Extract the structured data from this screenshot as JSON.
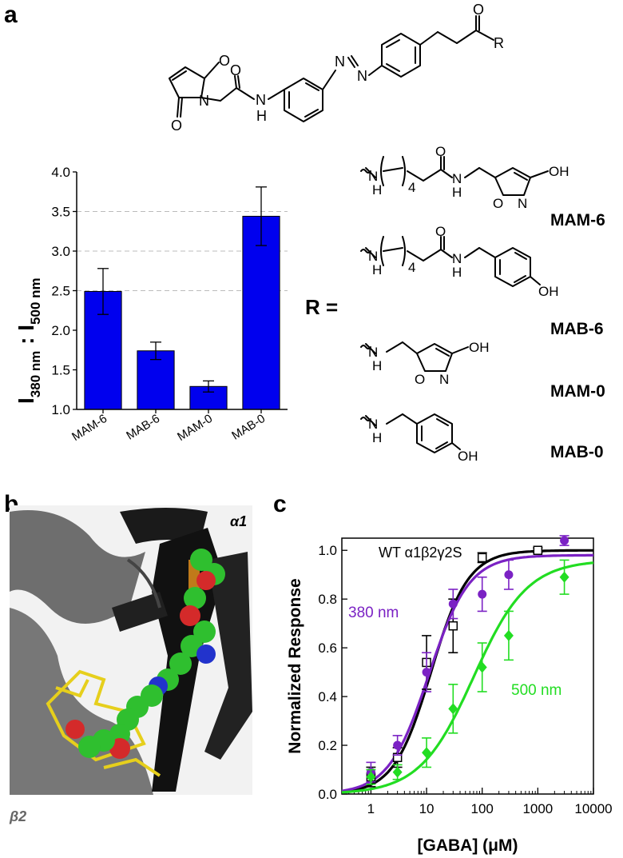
{
  "panels": {
    "a": "a",
    "b": "b",
    "c": "c"
  },
  "structure": {
    "atoms": {
      "O": "O",
      "N": "N",
      "H": "H",
      "R": "R",
      "OH": "OH",
      "n4": "4"
    },
    "r_equals": "R ="
  },
  "r_groups": [
    "MAM-6",
    "MAB-6",
    "MAM-0",
    "MAB-0"
  ],
  "bar_chart_data": {
    "type": "bar",
    "categories": [
      "MAM-6",
      "MAB-6",
      "MAM-0",
      "MAB-0"
    ],
    "values": [
      2.49,
      1.74,
      1.29,
      3.44
    ],
    "errors": [
      0.29,
      0.11,
      0.07,
      0.37
    ],
    "ylabel_parts": {
      "i1": "I",
      "s1": "380 nm",
      "colon": ":",
      "i2": "I",
      "s2": "500 nm"
    },
    "ylim": [
      1.0,
      4.0
    ],
    "yticks": [
      "1.0",
      "1.5",
      "2.0",
      "2.5",
      "3.0",
      "3.5",
      "4.0"
    ],
    "dashed_gridlines": [
      2.5,
      3.0,
      3.5
    ],
    "bar_color": "#0000ee"
  },
  "structure_panel": {
    "alpha_label": "α1",
    "beta_label": "β2"
  },
  "chart_data": {
    "type": "scatter",
    "xlabel": "[GABA] (μM)",
    "ylabel": "Normalized Response",
    "xscale": "log",
    "xlim": [
      0.3,
      10000
    ],
    "ylim": [
      0.0,
      1.05
    ],
    "xticks": [
      "1",
      "10",
      "100",
      "1000",
      "10000"
    ],
    "yticks": [
      "0.0",
      "0.2",
      "0.4",
      "0.6",
      "0.8",
      "1.0"
    ],
    "title_annotation": "WT α1β2γ2S",
    "series": [
      {
        "name": "",
        "color": "#000000",
        "marker": "open-square",
        "x": [
          1,
          3,
          10,
          30,
          100,
          1000
        ],
        "y": [
          0.07,
          0.15,
          0.54,
          0.69,
          0.97,
          1.0
        ],
        "err": [
          0.04,
          0.04,
          0.11,
          0.11,
          0.02,
          0.01
        ],
        "fit": {
          "ec50": 12,
          "hill": 1.3,
          "top": 1.0
        }
      },
      {
        "name": "380 nm",
        "color": "#7b22c4",
        "marker": "circle",
        "x": [
          1,
          3,
          10,
          30,
          100,
          300,
          3000
        ],
        "y": [
          0.09,
          0.2,
          0.5,
          0.78,
          0.82,
          0.9,
          1.04
        ],
        "err": [
          0.04,
          0.04,
          0.08,
          0.06,
          0.07,
          0.06,
          0.02
        ],
        "fit": {
          "ec50": 11,
          "hill": 1.2,
          "top": 0.98
        }
      },
      {
        "name": "500 nm",
        "color": "#22dd22",
        "marker": "diamond",
        "x": [
          1,
          3,
          10,
          30,
          100,
          300,
          3000
        ],
        "y": [
          0.07,
          0.09,
          0.17,
          0.35,
          0.52,
          0.65,
          0.89
        ],
        "err": [
          0.03,
          0.03,
          0.06,
          0.1,
          0.1,
          0.1,
          0.07
        ],
        "fit": {
          "ec50": 70,
          "hill": 0.9,
          "top": 0.96
        }
      }
    ]
  }
}
